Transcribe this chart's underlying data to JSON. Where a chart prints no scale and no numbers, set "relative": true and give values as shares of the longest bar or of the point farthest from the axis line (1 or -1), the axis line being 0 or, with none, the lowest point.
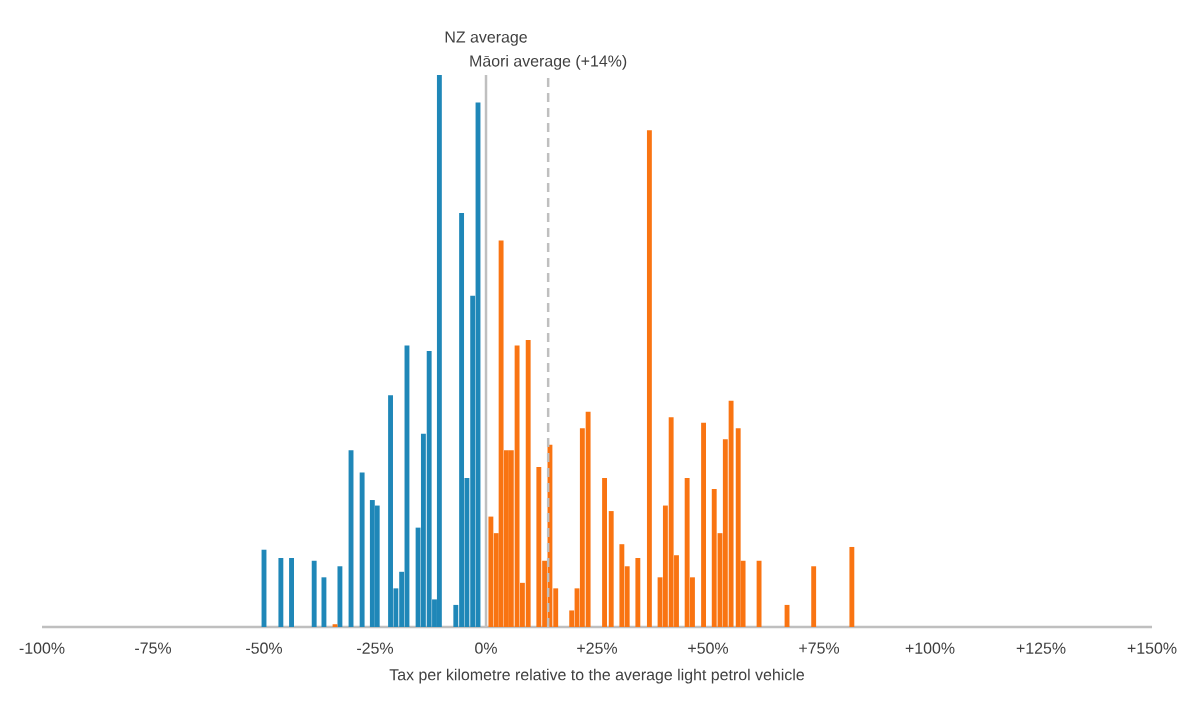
{
  "chart_data": {
    "type": "bar",
    "relative": true,
    "xlabel": "Tax per kilometre relative to the average light petrol vehicle",
    "xlim": [
      -100,
      150
    ],
    "xticks": [
      {
        "value": -100,
        "label": "-100%"
      },
      {
        "value": -75,
        "label": "-75%"
      },
      {
        "value": -50,
        "label": "-50%"
      },
      {
        "value": -25,
        "label": "-25%"
      },
      {
        "value": 0,
        "label": "0%"
      },
      {
        "value": 25,
        "label": "+25%"
      },
      {
        "value": 50,
        "label": "+50%"
      },
      {
        "value": 75,
        "label": "+75%"
      },
      {
        "value": 100,
        "label": "+100%"
      },
      {
        "value": 125,
        "label": "+125%"
      },
      {
        "value": 150,
        "label": "+150%"
      }
    ],
    "series": [
      {
        "color": "#1f87b8",
        "x": [
          -50,
          -46.2,
          -43.8,
          -38.7,
          -36.5,
          -32.9,
          -30.4,
          -27.9,
          -25.6,
          -24.5,
          -21.5,
          -20.3,
          -19,
          -17.8,
          -15.3,
          -14.1,
          -12.8,
          -11.6,
          -10.5,
          -6.8,
          -5.5,
          -4.3,
          -3,
          -1.8
        ],
        "values": [
          0.14,
          0.125,
          0.125,
          0.12,
          0.09,
          0.11,
          0.32,
          0.28,
          0.23,
          0.22,
          0.42,
          0.07,
          0.1,
          0.51,
          0.18,
          0.35,
          0.5,
          0.05,
          1.0,
          0.04,
          0.75,
          0.27,
          0.6,
          0.95
        ]
      },
      {
        "color": "#f97412",
        "x": [
          -34,
          1.1,
          2.3,
          3.4,
          4.6,
          5.7,
          7,
          8.2,
          9.5,
          11.9,
          13.2,
          14.4,
          15.7,
          19.3,
          20.5,
          21.7,
          23,
          26.7,
          28.2,
          30.6,
          31.8,
          34.2,
          36.8,
          39.2,
          40.4,
          41.7,
          42.9,
          45.3,
          46.5,
          49,
          51.4,
          52.7,
          53.9,
          55.2,
          56.8,
          57.9,
          61.5,
          67.8,
          73.8,
          82.4
        ],
        "values": [
          0.005,
          0.2,
          0.17,
          0.7,
          0.32,
          0.32,
          0.51,
          0.08,
          0.52,
          0.29,
          0.12,
          0.33,
          0.07,
          0.03,
          0.07,
          0.36,
          0.39,
          0.27,
          0.21,
          0.15,
          0.11,
          0.125,
          0.9,
          0.09,
          0.22,
          0.38,
          0.13,
          0.27,
          0.09,
          0.37,
          0.25,
          0.17,
          0.34,
          0.41,
          0.36,
          0.12,
          0.12,
          0.04,
          0.11,
          0.145
        ]
      }
    ],
    "ref_lines": [
      {
        "axis": "x",
        "value": 0,
        "label": "NZ average",
        "color": "#bfbfbf",
        "line_style": "solid"
      },
      {
        "axis": "x",
        "value": 14,
        "label": "Māori average (+14%)",
        "color": "#bfbfbf",
        "line_style": "dashed"
      }
    ]
  }
}
